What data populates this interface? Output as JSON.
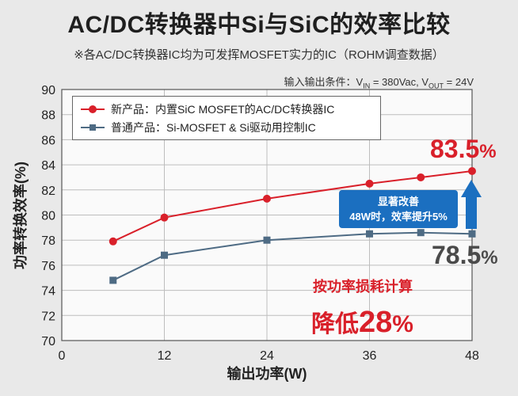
{
  "title": "AC/DC转换器中Si与SiC的效率比较",
  "subtitle": "※各AC/DC转换器IC均为可发挥MOSFET实力的IC（ROHM调查数据）",
  "conditions": {
    "prefix": "输入输出条件：V",
    "vin_sub": "IN",
    "vin_value": " = 380Vac, V",
    "vout_sub": "OUT",
    "vout_value": " = 24V"
  },
  "chart_data": {
    "type": "line",
    "title": "AC/DC转换器中Si与SiC的效率比较",
    "xlabel": "输出功率(W)",
    "ylabel": "功率转换效率(%)",
    "xlim": [
      0,
      48
    ],
    "ylim": [
      70,
      90
    ],
    "xticks": [
      0,
      12,
      24,
      36,
      48
    ],
    "yticks": [
      70,
      72,
      74,
      76,
      78,
      80,
      82,
      84,
      86,
      88,
      90
    ],
    "grid": true,
    "legend_position": "top-left",
    "series": [
      {
        "name": "新产品：内置SiC MOSFET的AC/DC转换器IC",
        "color": "#d9202a",
        "marker": "circle",
        "x": [
          6,
          12,
          24,
          36,
          42,
          48
        ],
        "y": [
          77.9,
          79.8,
          81.3,
          82.5,
          83.0,
          83.5
        ]
      },
      {
        "name": "普通产品：Si-MOSFET & Si驱动用控制IC",
        "color": "#4e6b84",
        "marker": "square",
        "x": [
          6,
          12,
          24,
          36,
          42,
          48
        ],
        "y": [
          74.8,
          76.8,
          78.0,
          78.5,
          78.6,
          78.5
        ]
      }
    ],
    "annotations": {
      "sic_value": "83.5",
      "si_value": "78.5",
      "percent": "%",
      "callout_line1": "显著改善",
      "callout_line2": "48W时，效率提升5%",
      "reduction_caption": "按功率损耗计算",
      "reduction_prefix": "降低",
      "reduction_value": "28",
      "reduction_unit": "%"
    }
  }
}
